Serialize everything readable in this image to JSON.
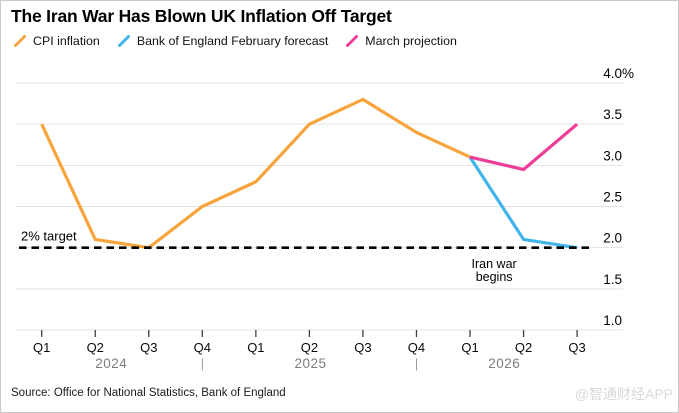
{
  "title": "The Iran War Has Blown UK Inflation Off Target",
  "legend": {
    "items": [
      {
        "label": "CPI inflation",
        "color": "#F7A43C"
      },
      {
        "label": "Bank of England February forecast",
        "color": "#41B4EA"
      },
      {
        "label": "March projection",
        "color": "#ED3D97"
      }
    ]
  },
  "chart_data": {
    "type": "line",
    "title": "The Iran War Has Blown UK Inflation Off Target",
    "x_categories": [
      "Q1",
      "Q2",
      "Q3",
      "Q4",
      "Q1",
      "Q2",
      "Q3",
      "Q4",
      "Q1",
      "Q2",
      "Q3"
    ],
    "years": [
      {
        "label": "2024",
        "center_index": 1.3
      },
      {
        "label": "2025",
        "center_index": 5.02
      },
      {
        "label": "2026",
        "center_index": 8.64
      }
    ],
    "year_separator_indices": [
      3,
      7
    ],
    "year_separator_glyph": "|",
    "ylim": [
      1.0,
      4.0
    ],
    "y_ticks": [
      4.0,
      3.5,
      3.0,
      2.5,
      2.0,
      1.5,
      1.0
    ],
    "y_tick_labels": [
      "4.0%",
      "3.5",
      "3.0",
      "2.5",
      "2.0",
      "1.5",
      "1.0"
    ],
    "grid": true,
    "legend_position": "top",
    "series": [
      {
        "name": "CPI inflation",
        "color": "#F7A43C",
        "start_index": 0,
        "values": [
          3.5,
          2.1,
          2.0,
          2.5,
          2.8,
          3.5,
          3.8,
          3.4,
          3.1
        ]
      },
      {
        "name": "Bank of England February forecast",
        "color": "#41B4EA",
        "start_index": 8,
        "values": [
          3.1,
          2.1,
          2.0
        ]
      },
      {
        "name": "March projection",
        "color": "#ED3D97",
        "start_index": 8,
        "values": [
          3.1,
          2.95,
          3.5
        ]
      }
    ],
    "target_line": {
      "value": 2.0,
      "label": "2% target",
      "color": "#000000",
      "style": "dashed"
    },
    "annotation": {
      "lines": [
        "Iran war",
        "begins"
      ],
      "x_index": 8.45,
      "value": 1.75
    }
  },
  "source": "Source: Office for National Statistics, Bank of England",
  "watermark": {
    "text": "@智通财经APP"
  }
}
